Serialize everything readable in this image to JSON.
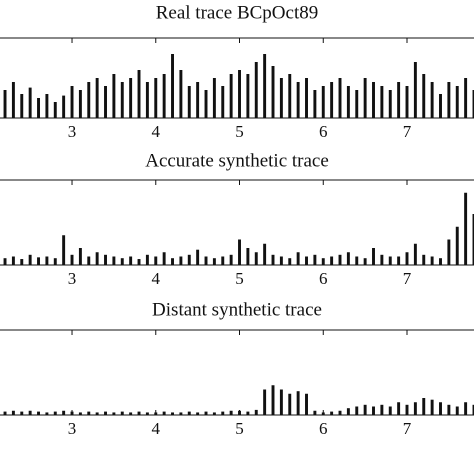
{
  "chart_data": [
    {
      "type": "bar",
      "title": "Real trace BCpOct89",
      "color": "#111111",
      "x": [
        2.2,
        2.3,
        2.4,
        2.5,
        2.6,
        2.7,
        2.8,
        2.9,
        3.0,
        3.1,
        3.2,
        3.3,
        3.4,
        3.5,
        3.6,
        3.7,
        3.8,
        3.9,
        4.0,
        4.1,
        4.2,
        4.3,
        4.4,
        4.5,
        4.6,
        4.7,
        4.8,
        4.9,
        5.0,
        5.1,
        5.2,
        5.3,
        5.4,
        5.5,
        5.6,
        5.7,
        5.8,
        5.9,
        6.0,
        6.1,
        6.2,
        6.3,
        6.4,
        6.5,
        6.6,
        6.7,
        6.8,
        6.9,
        7.0,
        7.1,
        7.2,
        7.3,
        7.4,
        7.5,
        7.6,
        7.7,
        7.8
      ],
      "values": [
        0.35,
        0.45,
        0.3,
        0.38,
        0.25,
        0.3,
        0.2,
        0.28,
        0.4,
        0.35,
        0.45,
        0.5,
        0.4,
        0.55,
        0.45,
        0.5,
        0.6,
        0.45,
        0.5,
        0.55,
        0.8,
        0.6,
        0.4,
        0.45,
        0.35,
        0.5,
        0.4,
        0.55,
        0.6,
        0.55,
        0.7,
        0.8,
        0.65,
        0.5,
        0.55,
        0.45,
        0.5,
        0.35,
        0.4,
        0.45,
        0.5,
        0.4,
        0.35,
        0.5,
        0.45,
        0.4,
        0.35,
        0.45,
        0.4,
        0.7,
        0.55,
        0.45,
        0.3,
        0.45,
        0.4,
        0.5,
        0.35
      ],
      "xlim": [
        2.14,
        7.8
      ],
      "ylim": [
        0,
        1
      ],
      "xticks": [
        3,
        4,
        5,
        6,
        7
      ]
    },
    {
      "type": "bar",
      "title": "Accurate synthetic trace",
      "color": "#111111",
      "x": [
        2.2,
        2.3,
        2.4,
        2.5,
        2.6,
        2.7,
        2.8,
        2.9,
        3.0,
        3.1,
        3.2,
        3.3,
        3.4,
        3.5,
        3.6,
        3.7,
        3.8,
        3.9,
        4.0,
        4.1,
        4.2,
        4.3,
        4.4,
        4.5,
        4.6,
        4.7,
        4.8,
        4.9,
        5.0,
        5.1,
        5.2,
        5.3,
        5.4,
        5.5,
        5.6,
        5.7,
        5.8,
        5.9,
        6.0,
        6.1,
        6.2,
        6.3,
        6.4,
        6.5,
        6.6,
        6.7,
        6.8,
        6.9,
        7.0,
        7.1,
        7.2,
        7.3,
        7.4,
        7.5,
        7.6,
        7.7,
        7.8
      ],
      "values": [
        0.08,
        0.1,
        0.07,
        0.12,
        0.09,
        0.1,
        0.08,
        0.35,
        0.12,
        0.2,
        0.1,
        0.15,
        0.12,
        0.1,
        0.08,
        0.1,
        0.07,
        0.12,
        0.1,
        0.15,
        0.08,
        0.1,
        0.12,
        0.18,
        0.1,
        0.08,
        0.1,
        0.12,
        0.3,
        0.2,
        0.15,
        0.25,
        0.12,
        0.1,
        0.08,
        0.15,
        0.1,
        0.12,
        0.08,
        0.1,
        0.12,
        0.15,
        0.1,
        0.08,
        0.2,
        0.12,
        0.1,
        0.1,
        0.15,
        0.25,
        0.12,
        0.1,
        0.08,
        0.3,
        0.45,
        0.85,
        0.6
      ],
      "xlim": [
        2.14,
        7.8
      ],
      "ylim": [
        0,
        1
      ],
      "xticks": [
        3,
        4,
        5,
        6,
        7
      ]
    },
    {
      "type": "bar",
      "title": "Distant synthetic trace",
      "color": "#111111",
      "x": [
        2.2,
        2.3,
        2.4,
        2.5,
        2.6,
        2.7,
        2.8,
        2.9,
        3.0,
        3.1,
        3.2,
        3.3,
        3.4,
        3.5,
        3.6,
        3.7,
        3.8,
        3.9,
        4.0,
        4.1,
        4.2,
        4.3,
        4.4,
        4.5,
        4.6,
        4.7,
        4.8,
        4.9,
        5.0,
        5.1,
        5.2,
        5.3,
        5.4,
        5.5,
        5.6,
        5.7,
        5.8,
        5.9,
        6.0,
        6.1,
        6.2,
        6.3,
        6.4,
        6.5,
        6.6,
        6.7,
        6.8,
        6.9,
        7.0,
        7.1,
        7.2,
        7.3,
        7.4,
        7.5,
        7.6,
        7.7,
        7.8
      ],
      "values": [
        0.04,
        0.05,
        0.04,
        0.05,
        0.04,
        0.03,
        0.04,
        0.05,
        0.04,
        0.03,
        0.04,
        0.03,
        0.04,
        0.03,
        0.04,
        0.03,
        0.04,
        0.03,
        0.03,
        0.04,
        0.03,
        0.03,
        0.04,
        0.03,
        0.04,
        0.03,
        0.04,
        0.05,
        0.05,
        0.04,
        0.06,
        0.3,
        0.35,
        0.3,
        0.25,
        0.28,
        0.25,
        0.05,
        0.03,
        0.04,
        0.05,
        0.08,
        0.1,
        0.12,
        0.1,
        0.12,
        0.1,
        0.15,
        0.12,
        0.15,
        0.2,
        0.18,
        0.15,
        0.12,
        0.1,
        0.15,
        0.12
      ],
      "xlim": [
        2.14,
        7.8
      ],
      "ylim": [
        0,
        1
      ],
      "xticks": [
        3,
        4,
        5,
        6,
        7
      ]
    }
  ]
}
